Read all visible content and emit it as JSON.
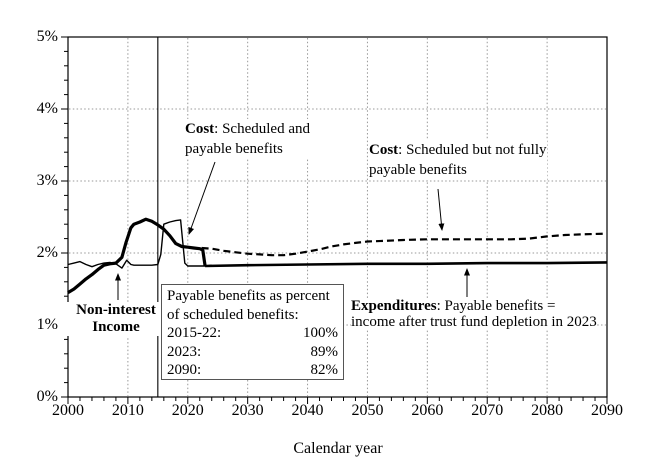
{
  "chart_data": {
    "type": "line",
    "title": "",
    "xlabel": "Calendar year",
    "ylabel": "",
    "xlim": [
      2000,
      2090
    ],
    "ylim_pct": [
      0,
      5
    ],
    "x_tick_labels": [
      "2000",
      "2010",
      "2020",
      "2030",
      "2040",
      "2050",
      "2060",
      "2070",
      "2080",
      "2090"
    ],
    "y_tick_labels": [
      "0%",
      "1%",
      "2%",
      "3%",
      "4%",
      "5%"
    ],
    "x_minor_tick_step_years": 2,
    "y_minor_tick_step_pct": 0.2,
    "grid": "dotted gray horizontal at each 1% and vertical at each decade",
    "divider_line_year": 2015,
    "series": [
      {
        "name": "non-interest-income",
        "label": "Non-interest Income",
        "style": "thin-solid",
        "points": [
          [
            2000,
            1.84
          ],
          [
            2001,
            1.86
          ],
          [
            2002,
            1.88
          ],
          [
            2003,
            1.84
          ],
          [
            2004,
            1.81
          ],
          [
            2005,
            1.84
          ],
          [
            2006,
            1.86
          ],
          [
            2007,
            1.87
          ],
          [
            2008,
            1.85
          ],
          [
            2009,
            1.79
          ],
          [
            2009.8,
            1.9
          ],
          [
            2010.5,
            1.84
          ],
          [
            2011,
            1.83
          ],
          [
            2012,
            1.83
          ],
          [
            2013,
            1.83
          ],
          [
            2014,
            1.83
          ],
          [
            2015,
            1.84
          ],
          [
            2015.5,
            1.98
          ],
          [
            2016,
            2.4
          ],
          [
            2017,
            2.43
          ],
          [
            2018,
            2.45
          ],
          [
            2018.8,
            2.46
          ],
          [
            2019.5,
            1.86
          ],
          [
            2020,
            1.82
          ],
          [
            2021,
            1.82
          ],
          [
            2022,
            1.82
          ],
          [
            2023,
            1.82
          ],
          [
            2024,
            1.83
          ]
        ]
      },
      {
        "name": "cost-scheduled-not-fully-payable",
        "label": "Cost: Scheduled but not fully payable benefits",
        "style": "dashed",
        "points": [
          [
            2022.3,
            2.07
          ],
          [
            2024,
            2.06
          ],
          [
            2026,
            2.03
          ],
          [
            2028,
            2.01
          ],
          [
            2030,
            1.99
          ],
          [
            2032,
            1.98
          ],
          [
            2034,
            1.97
          ],
          [
            2036,
            1.97
          ],
          [
            2038,
            1.99
          ],
          [
            2040,
            2.02
          ],
          [
            2042,
            2.05
          ],
          [
            2044,
            2.09
          ],
          [
            2046,
            2.12
          ],
          [
            2048,
            2.14
          ],
          [
            2050,
            2.16
          ],
          [
            2053,
            2.17
          ],
          [
            2056,
            2.18
          ],
          [
            2060,
            2.19
          ],
          [
            2065,
            2.19
          ],
          [
            2070,
            2.19
          ],
          [
            2074,
            2.19
          ],
          [
            2077,
            2.2
          ],
          [
            2080,
            2.23
          ],
          [
            2083,
            2.25
          ],
          [
            2086,
            2.26
          ],
          [
            2090,
            2.27
          ]
        ]
      },
      {
        "name": "cost-scheduled-and-payable",
        "label": "Cost: Scheduled and payable benefits",
        "style": "thick-solid",
        "points": [
          [
            2000,
            1.45
          ],
          [
            2001,
            1.5
          ],
          [
            2002,
            1.57
          ],
          [
            2003,
            1.64
          ],
          [
            2004,
            1.7
          ],
          [
            2005,
            1.77
          ],
          [
            2006,
            1.83
          ],
          [
            2007,
            1.85
          ],
          [
            2008,
            1.86
          ],
          [
            2009,
            1.94
          ],
          [
            2009.7,
            2.15
          ],
          [
            2010.5,
            2.35
          ],
          [
            2011,
            2.4
          ],
          [
            2012,
            2.43
          ],
          [
            2013,
            2.47
          ],
          [
            2014,
            2.44
          ],
          [
            2015,
            2.39
          ],
          [
            2016,
            2.33
          ],
          [
            2017,
            2.24
          ],
          [
            2018,
            2.13
          ],
          [
            2019,
            2.09
          ],
          [
            2020,
            2.08
          ],
          [
            2021,
            2.07
          ],
          [
            2022,
            2.06
          ],
          [
            2022.5,
            2.04
          ],
          [
            2022.9,
            1.82
          ]
        ]
      },
      {
        "name": "expenditures-payable",
        "label": "Expenditures: Payable benefits = income after trust fund depletion in 2023",
        "style": "medium-solid",
        "points": [
          [
            2022.9,
            1.82
          ],
          [
            2030,
            1.83
          ],
          [
            2040,
            1.84
          ],
          [
            2050,
            1.85
          ],
          [
            2060,
            1.85
          ],
          [
            2070,
            1.86
          ],
          [
            2080,
            1.86
          ],
          [
            2090,
            1.87
          ]
        ]
      }
    ]
  },
  "annotations": {
    "cost_payable": {
      "bold": "Cost",
      "rest": ": Scheduled and payable benefits"
    },
    "cost_scheduled": {
      "bold": "Cost",
      "rest": ": Scheduled but not fully payable benefits"
    },
    "income": {
      "line1": "Non-interest",
      "line2": "Income"
    },
    "expenditures": {
      "bold": "Expenditures",
      "rest": ": Payable benefits =",
      "line2": "income after trust fund depletion in 2023"
    },
    "box": {
      "line1": "Payable benefits as percent",
      "line2": "of scheduled benefits:",
      "rows": [
        {
          "label": "2015-22:",
          "value": "100%"
        },
        {
          "label": "2023:",
          "value": "89%"
        },
        {
          "label": "2090:",
          "value": "82%"
        }
      ]
    }
  }
}
